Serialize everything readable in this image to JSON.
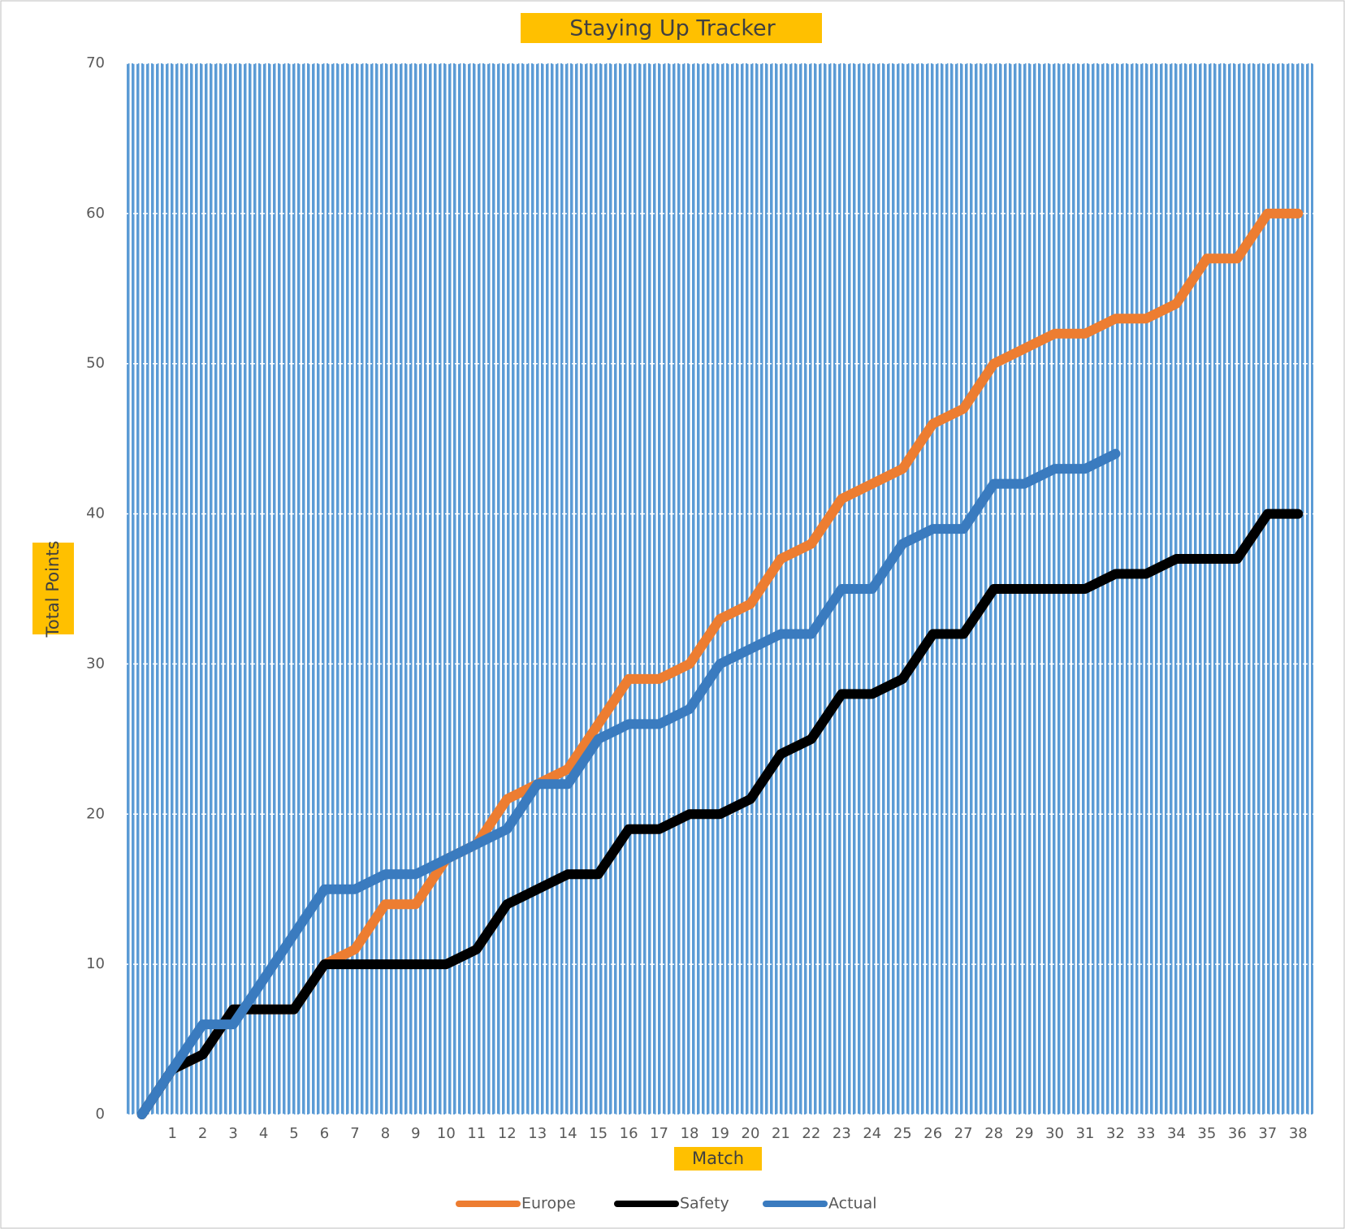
{
  "chart_data": {
    "type": "line",
    "title": "Staying Up Tracker",
    "x_label": "Match",
    "y_label": "Total Points",
    "categories": [
      null,
      "1",
      "2",
      "3",
      "4",
      "5",
      "6",
      "7",
      "8",
      "9",
      "10",
      "11",
      "12",
      "13",
      "14",
      "15",
      "16",
      "17",
      "18",
      "19",
      "20",
      "21",
      "22",
      "23",
      "24",
      "25",
      "26",
      "27",
      "28",
      "29",
      "30",
      "31",
      "32",
      "33",
      "34",
      "35",
      "36",
      "37",
      "38"
    ],
    "series": [
      {
        "name": "Europe",
        "color": "#ed7d31",
        "values": [
          0,
          3,
          4,
          7,
          7,
          7,
          10,
          11,
          14,
          14,
          17,
          18,
          21,
          22,
          23,
          26,
          29,
          29,
          30,
          33,
          34,
          37,
          38,
          41,
          42,
          43,
          46,
          47,
          50,
          51,
          52,
          52,
          53,
          53,
          54,
          57,
          57,
          60,
          60
        ]
      },
      {
        "name": "Safety",
        "color": "#000000",
        "values": [
          0,
          3,
          4,
          7,
          7,
          7,
          10,
          10,
          10,
          10,
          10,
          11,
          14,
          15,
          16,
          16,
          19,
          19,
          20,
          20,
          21,
          24,
          25,
          28,
          28,
          29,
          32,
          32,
          35,
          35,
          35,
          35,
          36,
          36,
          37,
          37,
          37,
          40,
          40
        ]
      },
      {
        "name": "Actual",
        "color": "#3a7bbf",
        "values": [
          0,
          3,
          6,
          6,
          9,
          12,
          15,
          15,
          16,
          16,
          17,
          18,
          19,
          22,
          22,
          25,
          26,
          26,
          27,
          30,
          31,
          32,
          32,
          35,
          35,
          38,
          39,
          39,
          42,
          42,
          43,
          43,
          44,
          null,
          null,
          null,
          null,
          null,
          null
        ]
      }
    ],
    "ylim": [
      0,
      70
    ],
    "yticks": [
      0,
      10,
      20,
      30,
      40,
      50,
      60,
      70
    ],
    "grid": true,
    "legend": "bottom"
  }
}
